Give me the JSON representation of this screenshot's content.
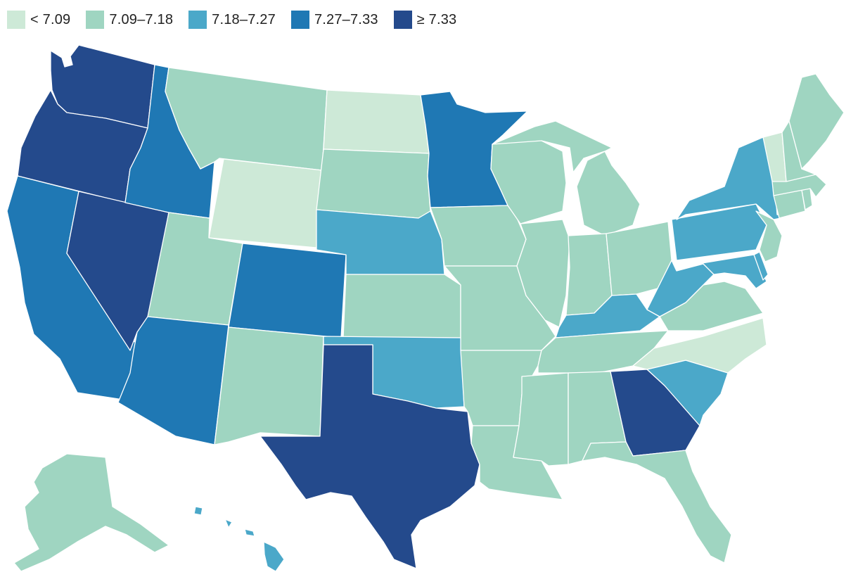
{
  "legend": [
    {
      "label": "< 7.09",
      "color": "#cde9d7"
    },
    {
      "label": "7.09–7.18",
      "color": "#9fd5c1"
    },
    {
      "label": "7.18–7.27",
      "color": "#4ba8c9"
    },
    {
      "label": "7.27–7.33",
      "color": "#1f78b4"
    },
    {
      "label": "≥ 7.33",
      "color": "#244a8c"
    }
  ],
  "states": [
    {
      "name": "Washington",
      "bin": 4
    },
    {
      "name": "Oregon",
      "bin": 4
    },
    {
      "name": "California",
      "bin": 3
    },
    {
      "name": "Nevada",
      "bin": 4
    },
    {
      "name": "Idaho",
      "bin": 3
    },
    {
      "name": "Montana",
      "bin": 1
    },
    {
      "name": "Wyoming",
      "bin": 0
    },
    {
      "name": "Utah",
      "bin": 1
    },
    {
      "name": "Arizona",
      "bin": 3
    },
    {
      "name": "Colorado",
      "bin": 3
    },
    {
      "name": "New Mexico",
      "bin": 1
    },
    {
      "name": "North Dakota",
      "bin": 0
    },
    {
      "name": "South Dakota",
      "bin": 1
    },
    {
      "name": "Nebraska",
      "bin": 2
    },
    {
      "name": "Kansas",
      "bin": 1
    },
    {
      "name": "Oklahoma",
      "bin": 2
    },
    {
      "name": "Texas",
      "bin": 4
    },
    {
      "name": "Minnesota",
      "bin": 3
    },
    {
      "name": "Iowa",
      "bin": 1
    },
    {
      "name": "Missouri",
      "bin": 1
    },
    {
      "name": "Arkansas",
      "bin": 1
    },
    {
      "name": "Louisiana",
      "bin": 1
    },
    {
      "name": "Wisconsin",
      "bin": 1
    },
    {
      "name": "Illinois",
      "bin": 1
    },
    {
      "name": "Michigan",
      "bin": 1
    },
    {
      "name": "Indiana",
      "bin": 1
    },
    {
      "name": "Ohio",
      "bin": 1
    },
    {
      "name": "Kentucky",
      "bin": 2
    },
    {
      "name": "Tennessee",
      "bin": 1
    },
    {
      "name": "Mississippi",
      "bin": 1
    },
    {
      "name": "Alabama",
      "bin": 1
    },
    {
      "name": "Georgia",
      "bin": 4
    },
    {
      "name": "Florida",
      "bin": 1
    },
    {
      "name": "South Carolina",
      "bin": 2
    },
    {
      "name": "North Carolina",
      "bin": 0
    },
    {
      "name": "Virginia",
      "bin": 1
    },
    {
      "name": "West Virginia",
      "bin": 2
    },
    {
      "name": "Maryland",
      "bin": 2
    },
    {
      "name": "Delaware",
      "bin": 2
    },
    {
      "name": "Pennsylvania",
      "bin": 2
    },
    {
      "name": "New Jersey",
      "bin": 1
    },
    {
      "name": "New York",
      "bin": 2
    },
    {
      "name": "Connecticut",
      "bin": 1
    },
    {
      "name": "Rhode Island",
      "bin": 1
    },
    {
      "name": "Massachusetts",
      "bin": 1
    },
    {
      "name": "Vermont",
      "bin": 0
    },
    {
      "name": "New Hampshire",
      "bin": 1
    },
    {
      "name": "Maine",
      "bin": 1
    },
    {
      "name": "Alaska",
      "bin": 1
    },
    {
      "name": "Hawaii",
      "bin": 2
    }
  ]
}
